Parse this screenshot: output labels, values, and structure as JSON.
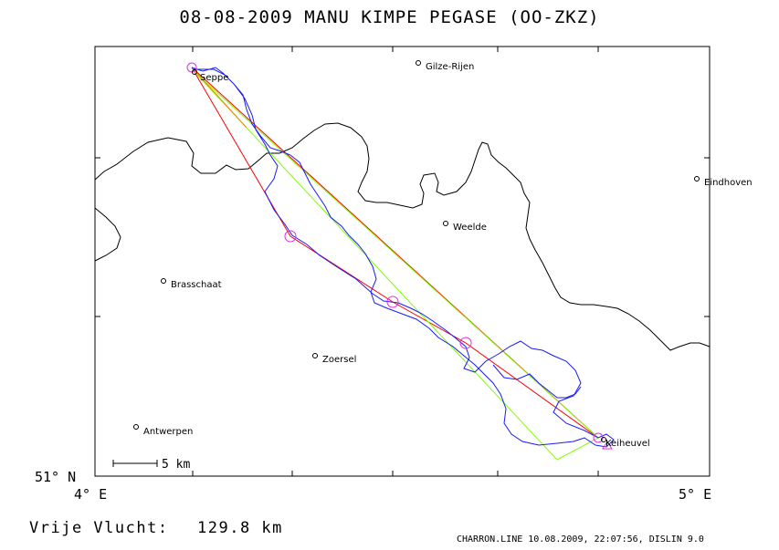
{
  "title": "08-08-2009    MANU KIMPE    PEGASE (OO-ZKZ)",
  "lat_label": "51° N",
  "lon_left_label": "4° E",
  "lon_right_label": "5° E",
  "scale_bar_label": "5 km",
  "flight_distance_label": "Vrije Vlucht:",
  "flight_distance_value": "129.8 km",
  "footer": "CHARRON.LINE 10.08.2009, 22:07:56, DISLIN 9.0",
  "places": [
    {
      "name": "Seppe"
    },
    {
      "name": "Gilze-Rijen"
    },
    {
      "name": "Eindhoven"
    },
    {
      "name": "Weelde"
    },
    {
      "name": "Brasschaat"
    },
    {
      "name": "Zoersel"
    },
    {
      "name": "Antwerpen"
    },
    {
      "name": "Keiheuvel"
    }
  ],
  "colors": {
    "frame": "#000000",
    "border_line": "#000000",
    "track": "#1a1aff",
    "task_red": "#ff0000",
    "task_green": "#80ff00",
    "turnpoint": "#e030e0",
    "background": "#ffffff"
  }
}
